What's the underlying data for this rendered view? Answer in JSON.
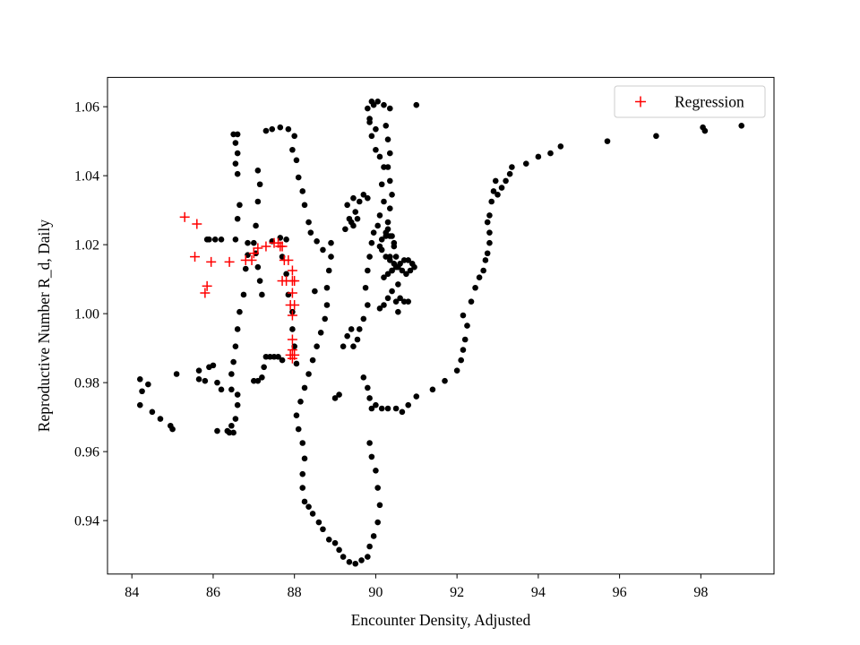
{
  "chart_data": {
    "type": "scatter",
    "xlabel": "Encounter Density, Adjusted",
    "ylabel": "Reproductive Number R_d, Daily",
    "xlim": [
      83.4,
      99.8
    ],
    "ylim": [
      0.9245,
      1.0685
    ],
    "x_ticks": [
      84,
      86,
      88,
      90,
      92,
      94,
      96,
      98
    ],
    "y_ticks": [
      0.94,
      0.96,
      0.98,
      1.0,
      1.02,
      1.04,
      1.06
    ],
    "x_tick_labels": [
      "84",
      "86",
      "88",
      "90",
      "92",
      "94",
      "96",
      "98"
    ],
    "y_tick_labels": [
      "0.94",
      "0.96",
      "0.98",
      "1.00",
      "1.02",
      "1.04",
      "1.06"
    ],
    "grid": false,
    "legend": {
      "placement": "top-right",
      "entries": [
        "Regression"
      ]
    },
    "series": [
      {
        "marker": "dot",
        "color": "#000000",
        "points": [
          [
            84.2,
            0.981
          ],
          [
            84.2,
            0.9735
          ],
          [
            84.25,
            0.9775
          ],
          [
            84.4,
            0.9795
          ],
          [
            84.5,
            0.9715
          ],
          [
            84.7,
            0.9695
          ],
          [
            84.95,
            0.9675
          ],
          [
            85.0,
            0.9665
          ],
          [
            85.1,
            0.9825
          ],
          [
            85.65,
            0.9835
          ],
          [
            85.65,
            0.981
          ],
          [
            85.8,
            0.9805
          ],
          [
            85.9,
            0.9845
          ],
          [
            85.85,
            1.0215
          ],
          [
            85.9,
            1.0215
          ],
          [
            86.05,
            1.0215
          ],
          [
            86.2,
            1.0215
          ],
          [
            86.0,
            0.985
          ],
          [
            86.1,
            0.98
          ],
          [
            86.2,
            0.978
          ],
          [
            86.1,
            0.966
          ],
          [
            86.35,
            0.966
          ],
          [
            86.4,
            0.9655
          ],
          [
            86.45,
            0.9675
          ],
          [
            86.5,
            0.9655
          ],
          [
            86.55,
            0.9695
          ],
          [
            86.6,
            0.9735
          ],
          [
            86.6,
            0.9765
          ],
          [
            86.45,
            0.978
          ],
          [
            86.45,
            0.9825
          ],
          [
            86.5,
            0.986
          ],
          [
            86.55,
            0.9905
          ],
          [
            86.6,
            0.9955
          ],
          [
            86.65,
            1.0005
          ],
          [
            86.75,
            1.0055
          ],
          [
            86.8,
            1.013
          ],
          [
            86.85,
            1.017
          ],
          [
            86.85,
            1.0205
          ],
          [
            86.55,
            1.0215
          ],
          [
            86.6,
            1.0275
          ],
          [
            86.65,
            1.0315
          ],
          [
            86.5,
            1.052
          ],
          [
            86.55,
            1.0495
          ],
          [
            86.6,
            1.0465
          ],
          [
            86.55,
            1.0435
          ],
          [
            86.6,
            1.0405
          ],
          [
            86.6,
            1.052
          ],
          [
            87.0,
            0.9805
          ],
          [
            87.1,
            0.9805
          ],
          [
            87.2,
            0.9815
          ],
          [
            87.25,
            0.9845
          ],
          [
            87.3,
            0.9875
          ],
          [
            87.4,
            0.9875
          ],
          [
            87.5,
            0.9875
          ],
          [
            87.6,
            0.9875
          ],
          [
            87.7,
            0.9865
          ],
          [
            87.2,
            1.0055
          ],
          [
            87.15,
            1.0095
          ],
          [
            87.1,
            1.0135
          ],
          [
            87.05,
            1.0175
          ],
          [
            87.0,
            1.0205
          ],
          [
            87.05,
            1.0255
          ],
          [
            87.1,
            1.0325
          ],
          [
            87.15,
            1.0375
          ],
          [
            87.1,
            1.0415
          ],
          [
            87.3,
            1.053
          ],
          [
            87.45,
            1.0535
          ],
          [
            87.65,
            1.054
          ],
          [
            87.85,
            1.0535
          ],
          [
            88.0,
            1.0515
          ],
          [
            87.95,
            1.0475
          ],
          [
            88.05,
            1.0445
          ],
          [
            88.1,
            1.0395
          ],
          [
            88.2,
            1.0355
          ],
          [
            88.25,
            1.0315
          ],
          [
            88.35,
            1.0265
          ],
          [
            87.45,
            1.021
          ],
          [
            87.65,
            1.022
          ],
          [
            87.8,
            1.0215
          ],
          [
            87.7,
            1.0165
          ],
          [
            87.8,
            1.0115
          ],
          [
            87.85,
            1.0055
          ],
          [
            87.95,
            1.0005
          ],
          [
            87.95,
            0.9955
          ],
          [
            88.0,
            0.9905
          ],
          [
            88.05,
            0.9855
          ],
          [
            88.05,
            0.9705
          ],
          [
            88.1,
            0.9665
          ],
          [
            88.2,
            0.9625
          ],
          [
            88.25,
            0.958
          ],
          [
            88.2,
            0.9535
          ],
          [
            88.2,
            0.9495
          ],
          [
            88.25,
            0.9455
          ],
          [
            88.35,
            0.944
          ],
          [
            88.45,
            0.942
          ],
          [
            88.6,
            0.9395
          ],
          [
            88.7,
            0.9375
          ],
          [
            88.85,
            0.9345
          ],
          [
            89.0,
            0.9335
          ],
          [
            89.1,
            0.9315
          ],
          [
            89.2,
            0.9295
          ],
          [
            89.35,
            0.928
          ],
          [
            89.5,
            0.9275
          ],
          [
            89.65,
            0.9285
          ],
          [
            89.8,
            0.9295
          ],
          [
            89.85,
            0.9325
          ],
          [
            89.95,
            0.9355
          ],
          [
            90.05,
            0.9395
          ],
          [
            90.1,
            0.9445
          ],
          [
            90.05,
            0.9495
          ],
          [
            90.0,
            0.9545
          ],
          [
            89.9,
            0.9585
          ],
          [
            89.85,
            0.9625
          ],
          [
            88.15,
            0.9745
          ],
          [
            88.25,
            0.9785
          ],
          [
            88.35,
            0.9825
          ],
          [
            88.45,
            0.9865
          ],
          [
            88.55,
            0.9905
          ],
          [
            88.65,
            0.9945
          ],
          [
            88.75,
            0.9985
          ],
          [
            88.8,
            1.0025
          ],
          [
            88.8,
            1.0075
          ],
          [
            88.85,
            1.0125
          ],
          [
            88.9,
            1.0165
          ],
          [
            88.9,
            1.0205
          ],
          [
            88.4,
            1.0235
          ],
          [
            88.55,
            1.021
          ],
          [
            88.7,
            1.0185
          ],
          [
            88.5,
            1.0065
          ],
          [
            89.0,
            0.9755
          ],
          [
            89.1,
            0.9765
          ],
          [
            89.2,
            0.9905
          ],
          [
            89.3,
            0.9935
          ],
          [
            89.4,
            0.9955
          ],
          [
            89.45,
            0.9905
          ],
          [
            89.55,
            0.9925
          ],
          [
            89.6,
            0.9955
          ],
          [
            89.7,
            0.9985
          ],
          [
            89.8,
            1.0025
          ],
          [
            89.75,
            1.0075
          ],
          [
            89.8,
            1.0125
          ],
          [
            89.25,
            1.0245
          ],
          [
            89.4,
            1.0265
          ],
          [
            89.5,
            1.0295
          ],
          [
            89.6,
            1.0325
          ],
          [
            89.7,
            1.0345
          ],
          [
            89.8,
            1.0335
          ],
          [
            89.55,
            1.0275
          ],
          [
            89.45,
            1.0255
          ],
          [
            89.35,
            1.0275
          ],
          [
            89.3,
            1.0315
          ],
          [
            89.45,
            1.0335
          ],
          [
            89.7,
            0.9815
          ],
          [
            89.8,
            0.9785
          ],
          [
            89.85,
            0.9755
          ],
          [
            89.9,
            0.9725
          ],
          [
            90.0,
            0.9735
          ],
          [
            90.15,
            0.9725
          ],
          [
            90.3,
            0.9725
          ],
          [
            90.5,
            0.9725
          ],
          [
            90.65,
            0.9715
          ],
          [
            90.8,
            0.9735
          ],
          [
            89.85,
            1.0165
          ],
          [
            89.9,
            1.0205
          ],
          [
            89.95,
            1.0235
          ],
          [
            90.05,
            1.0255
          ],
          [
            90.1,
            1.0285
          ],
          [
            90.2,
            1.0325
          ],
          [
            90.15,
            1.0375
          ],
          [
            90.2,
            1.0425
          ],
          [
            90.1,
            1.0455
          ],
          [
            90.0,
            1.0475
          ],
          [
            89.9,
            1.0515
          ],
          [
            89.85,
            1.0565
          ],
          [
            89.8,
            1.0595
          ],
          [
            89.9,
            1.0615
          ],
          [
            90.05,
            1.0615
          ],
          [
            90.2,
            1.0605
          ],
          [
            90.35,
            1.0595
          ],
          [
            89.95,
            1.0605
          ],
          [
            89.85,
            1.0555
          ],
          [
            90.0,
            1.0535
          ],
          [
            90.25,
            1.0545
          ],
          [
            90.3,
            1.0505
          ],
          [
            90.35,
            1.0465
          ],
          [
            90.3,
            1.0425
          ],
          [
            90.35,
            1.0385
          ],
          [
            90.4,
            1.0345
          ],
          [
            90.35,
            1.0305
          ],
          [
            90.3,
            1.0265
          ],
          [
            90.25,
            1.0225
          ],
          [
            90.15,
            1.0185
          ],
          [
            90.25,
            1.0165
          ],
          [
            90.35,
            1.0155
          ],
          [
            90.45,
            1.0145
          ],
          [
            90.55,
            1.0135
          ],
          [
            90.65,
            1.0125
          ],
          [
            90.75,
            1.0115
          ],
          [
            90.85,
            1.0125
          ],
          [
            90.95,
            1.0135
          ],
          [
            90.9,
            1.0145
          ],
          [
            90.8,
            1.0155
          ],
          [
            90.7,
            1.0155
          ],
          [
            90.6,
            1.0145
          ],
          [
            90.5,
            1.0135
          ],
          [
            90.4,
            1.0125
          ],
          [
            90.3,
            1.0115
          ],
          [
            90.2,
            1.0105
          ],
          [
            90.3,
            1.0245
          ],
          [
            90.4,
            1.0225
          ],
          [
            90.45,
            1.0195
          ],
          [
            90.5,
            1.0165
          ],
          [
            90.55,
            1.0085
          ],
          [
            90.6,
            1.0045
          ],
          [
            90.55,
            1.0005
          ],
          [
            90.5,
            1.0035
          ],
          [
            90.4,
            1.0065
          ],
          [
            90.3,
            1.0045
          ],
          [
            90.2,
            1.0025
          ],
          [
            90.1,
            1.0015
          ],
          [
            90.7,
            1.0035
          ],
          [
            90.8,
            1.0035
          ],
          [
            90.4,
            1.0125
          ],
          [
            90.35,
            1.0165
          ],
          [
            90.45,
            1.0205
          ],
          [
            90.35,
            1.0225
          ],
          [
            90.25,
            1.0235
          ],
          [
            90.15,
            1.0215
          ],
          [
            90.1,
            1.0195
          ],
          [
            91.0,
            1.0605
          ],
          [
            91.0,
            0.976
          ],
          [
            91.4,
            0.978
          ],
          [
            91.7,
            0.9805
          ],
          [
            92.0,
            0.9835
          ],
          [
            92.1,
            0.9865
          ],
          [
            92.15,
            0.9895
          ],
          [
            92.2,
            0.9925
          ],
          [
            92.25,
            0.9965
          ],
          [
            92.15,
            0.9995
          ],
          [
            92.35,
            1.0035
          ],
          [
            92.45,
            1.0075
          ],
          [
            92.55,
            1.0105
          ],
          [
            92.65,
            1.0125
          ],
          [
            92.7,
            1.0155
          ],
          [
            92.75,
            1.0175
          ],
          [
            92.8,
            1.0205
          ],
          [
            92.8,
            1.0235
          ],
          [
            92.75,
            1.0265
          ],
          [
            92.8,
            1.0285
          ],
          [
            92.85,
            1.0325
          ],
          [
            92.9,
            1.0355
          ],
          [
            92.95,
            1.0385
          ],
          [
            93.0,
            1.0345
          ],
          [
            93.1,
            1.0365
          ],
          [
            93.2,
            1.0385
          ],
          [
            93.3,
            1.0405
          ],
          [
            93.35,
            1.0425
          ],
          [
            93.7,
            1.0435
          ],
          [
            94.0,
            1.0455
          ],
          [
            94.3,
            1.0465
          ],
          [
            94.55,
            1.0485
          ],
          [
            95.7,
            1.05
          ],
          [
            96.9,
            1.0515
          ],
          [
            98.05,
            1.054
          ],
          [
            98.1,
            1.053
          ],
          [
            99.0,
            1.0545
          ]
        ]
      },
      {
        "name": "Regression",
        "marker": "plus",
        "color": "#ff0000",
        "points": [
          [
            85.3,
            1.028
          ],
          [
            85.6,
            1.026
          ],
          [
            85.55,
            1.0165
          ],
          [
            85.85,
            1.008
          ],
          [
            85.8,
            1.006
          ],
          [
            85.95,
            1.015
          ],
          [
            86.4,
            1.015
          ],
          [
            86.8,
            1.0155
          ],
          [
            86.95,
            1.0155
          ],
          [
            87.0,
            1.0175
          ],
          [
            87.1,
            1.019
          ],
          [
            87.3,
            1.0195
          ],
          [
            87.5,
            1.0205
          ],
          [
            87.6,
            1.0205
          ],
          [
            87.65,
            1.0195
          ],
          [
            87.7,
            1.0195
          ],
          [
            87.75,
            1.0155
          ],
          [
            87.85,
            1.0155
          ],
          [
            87.7,
            1.0095
          ],
          [
            87.8,
            1.0095
          ],
          [
            87.95,
            1.0095
          ],
          [
            88.0,
            1.0095
          ],
          [
            87.95,
            1.0125
          ],
          [
            87.95,
            1.006
          ],
          [
            87.9,
            1.0025
          ],
          [
            88.0,
            1.0025
          ],
          [
            87.95,
            0.9995
          ],
          [
            87.95,
            0.9925
          ],
          [
            87.95,
            0.9895
          ],
          [
            87.9,
            0.988
          ],
          [
            88.0,
            0.988
          ],
          [
            87.95,
            0.987
          ]
        ]
      }
    ]
  }
}
